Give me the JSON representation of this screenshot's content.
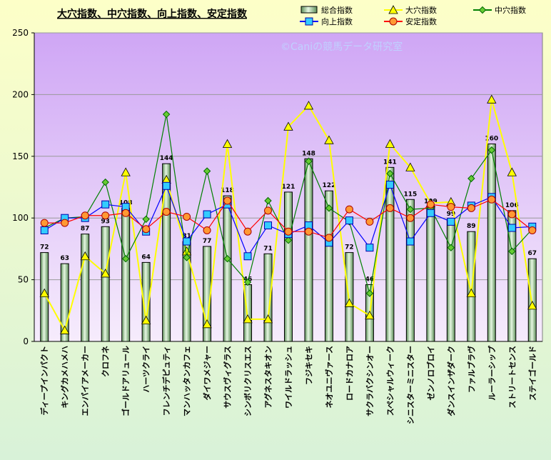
{
  "chart_data": {
    "type": "bar",
    "title": "大穴指数、中穴指数、向上指数、安定指数",
    "watermark": "©Caniの競馬データ研究室",
    "xlabel": "",
    "ylabel": "",
    "ylim": [
      0,
      250
    ],
    "yticks": [
      0,
      50,
      100,
      150,
      200,
      250
    ],
    "grid": true,
    "legend_position": "top-right",
    "categories": [
      "ディープインパクト",
      "キングカメハメハ",
      "エンパイアメーカー",
      "クロフネ",
      "ゴールドアリュール",
      "ハーツクライ",
      "フレンチデピュティ",
      "マンハッタンカフェ",
      "ダイワメジャー",
      "サウスヴィグラス",
      "シンボリクリスエス",
      "アグネスタキオン",
      "ワイルドラッシュ",
      "フジキセキ",
      "ネオユニヴァース",
      "ロードカナロア",
      "サクラバクシンオー",
      "スペシャルウィーク",
      "シニスターミニスター",
      "ゼンノロブロイ",
      "ダンスインザダーク",
      "ファルブラヴ",
      "ルーラーシップ",
      "ストリートセンス",
      "ステイゴールド"
    ],
    "series": [
      {
        "name": "総合指数",
        "kind": "bar",
        "color": "#b8e0b0",
        "values": [
          72,
          63,
          87,
          93,
          108,
          64,
          144,
          81,
          77,
          118,
          46,
          71,
          121,
          148,
          122,
          72,
          46,
          141,
          115,
          109,
          99,
          89,
          160,
          106,
          67
        ]
      },
      {
        "name": "大穴指数",
        "kind": "line",
        "color": "#ffff00",
        "marker": "triangle",
        "values": [
          39,
          9,
          69,
          55,
          137,
          17,
          131,
          73,
          14,
          160,
          18,
          18,
          174,
          191,
          163,
          31,
          21,
          160,
          141,
          112,
          113,
          39,
          196,
          137,
          29
        ]
      },
      {
        "name": "中穴指数",
        "kind": "line",
        "color": "#008000",
        "marker": "diamond",
        "values": [
          92,
          100,
          101,
          129,
          67,
          99,
          184,
          68,
          138,
          67,
          48,
          114,
          82,
          146,
          108,
          97,
          39,
          136,
          107,
          108,
          76,
          132,
          155,
          73,
          91
        ]
      },
      {
        "name": "向上指数",
        "kind": "line",
        "color": "#0000ff",
        "marker": "square",
        "values": [
          90,
          100,
          100,
          111,
          109,
          89,
          126,
          81,
          103,
          111,
          69,
          94,
          87,
          94,
          80,
          98,
          76,
          127,
          81,
          104,
          97,
          110,
          117,
          92,
          93
        ]
      },
      {
        "name": "安定指数",
        "kind": "line",
        "color": "#ff0000",
        "marker": "circle",
        "values": [
          96,
          96,
          102,
          102,
          104,
          91,
          105,
          101,
          90,
          114,
          89,
          106,
          89,
          89,
          84,
          107,
          97,
          108,
          100,
          111,
          109,
          108,
          115,
          103,
          90
        ]
      }
    ]
  },
  "colors": {
    "plot_bg_top": "#cfa6f5",
    "plot_bg_bottom": "#f6ecfc",
    "page_bg_top": "#fdffc8",
    "page_bg_bottom": "#d8f2d8"
  }
}
